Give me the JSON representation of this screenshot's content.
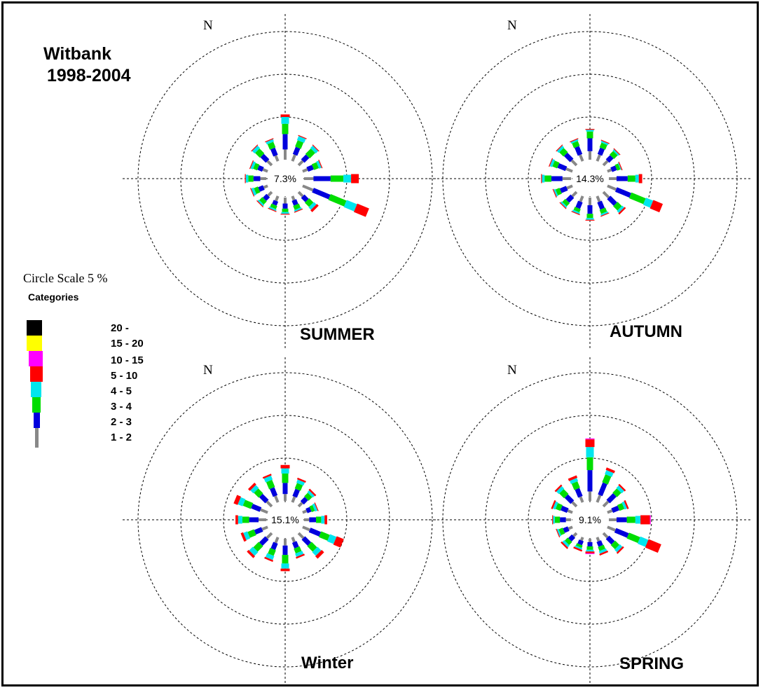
{
  "header": {
    "station": "Witbank",
    "period": "1998-2004"
  },
  "legend": {
    "circle_scale": "Circle Scale 5 %",
    "categories_label": "Categories",
    "categories": [
      {
        "label": "20 -",
        "color": "#000000"
      },
      {
        "label": "15 - 20",
        "color": "#ffff00"
      },
      {
        "label": "10 - 15",
        "color": "#ff00ff"
      },
      {
        "label": "5 - 10",
        "color": "#ff0000"
      },
      {
        "label": "4 - 5",
        "color": "#00e5ee"
      },
      {
        "label": "3 - 4",
        "color": "#00dd00"
      },
      {
        "label": "2 - 3",
        "color": "#0000dd"
      },
      {
        "label": "1 - 2",
        "color": "#888888"
      }
    ]
  },
  "north_label": "N",
  "chart_data": [
    {
      "type": "wind-rose",
      "title": "SUMMER",
      "calm": "7.3%",
      "circle_scale_percent": 5,
      "speed_classes": [
        "1 - 2",
        "2 - 3",
        "3 - 4",
        "4 - 5",
        "5 - 10",
        "10 - 15",
        "15 - 20",
        "20 -"
      ],
      "directions": [
        "N",
        "NNE",
        "NE",
        "ENE",
        "E",
        "ESE",
        "SE",
        "SSE",
        "S",
        "SSW",
        "SW",
        "WSW",
        "W",
        "WNW",
        "NW",
        "NNW"
      ],
      "values": [
        [
          1.2,
          1.8,
          1.2,
          0.8,
          0.3,
          0,
          0,
          0
        ],
        [
          0.8,
          0.9,
          0.8,
          0.5,
          0.1,
          0,
          0,
          0
        ],
        [
          0.7,
          0.8,
          0.9,
          0.4,
          0.1,
          0,
          0,
          0
        ],
        [
          0.6,
          0.7,
          0.6,
          0.3,
          0.1,
          0,
          0,
          0
        ],
        [
          1.1,
          2.0,
          1.5,
          0.9,
          0.9,
          0,
          0,
          0
        ],
        [
          1.3,
          2.1,
          2.0,
          1.3,
          1.5,
          0,
          0,
          0
        ],
        [
          0.7,
          0.7,
          0.7,
          0.4,
          0.3,
          0,
          0,
          0
        ],
        [
          0.5,
          0.6,
          0.5,
          0.2,
          0.1,
          0,
          0,
          0
        ],
        [
          0.7,
          0.6,
          0.4,
          0.2,
          0.1,
          0,
          0,
          0
        ],
        [
          0.6,
          0.5,
          0.4,
          0.2,
          0.1,
          0,
          0,
          0
        ],
        [
          0.6,
          0.6,
          0.5,
          0.2,
          0.1,
          0,
          0,
          0
        ],
        [
          0.5,
          0.6,
          0.5,
          0.3,
          0.1,
          0,
          0,
          0
        ],
        [
          0.7,
          0.8,
          0.6,
          0.3,
          0.1,
          0,
          0,
          0
        ],
        [
          0.6,
          0.6,
          0.5,
          0.3,
          0.1,
          0,
          0,
          0
        ],
        [
          0.7,
          0.9,
          0.8,
          0.4,
          0.1,
          0,
          0,
          0
        ],
        [
          0.7,
          0.9,
          0.7,
          0.3,
          0.1,
          0,
          0,
          0
        ]
      ]
    },
    {
      "type": "wind-rose",
      "title": "AUTUMN",
      "calm": "14.3%",
      "circle_scale_percent": 5,
      "speed_classes": [
        "1 - 2",
        "2 - 3",
        "3 - 4",
        "4 - 5",
        "5 - 10",
        "10 - 15",
        "15 - 20",
        "20 -"
      ],
      "directions": [
        "N",
        "NNE",
        "NE",
        "ENE",
        "E",
        "ESE",
        "SE",
        "SSE",
        "S",
        "SSW",
        "SW",
        "WSW",
        "W",
        "WNW",
        "NW",
        "NNW"
      ],
      "values": [
        [
          1.0,
          1.5,
          0.8,
          0.2,
          0.1,
          0,
          0,
          0
        ],
        [
          0.8,
          0.8,
          0.6,
          0.2,
          0.1,
          0,
          0,
          0
        ],
        [
          0.7,
          0.7,
          0.6,
          0.2,
          0.1,
          0,
          0,
          0
        ],
        [
          0.5,
          0.6,
          0.4,
          0.1,
          0.1,
          0,
          0,
          0
        ],
        [
          0.9,
          1.3,
          0.9,
          0.4,
          0.4,
          0,
          0,
          0
        ],
        [
          1.1,
          1.8,
          1.8,
          0.9,
          1.2,
          0,
          0,
          0
        ],
        [
          0.9,
          1.1,
          0.7,
          0.3,
          0.2,
          0,
          0,
          0
        ],
        [
          0.7,
          0.9,
          0.5,
          0.2,
          0.1,
          0,
          0,
          0
        ],
        [
          0.9,
          1.0,
          0.5,
          0.2,
          0.1,
          0,
          0,
          0
        ],
        [
          0.7,
          0.8,
          0.4,
          0.2,
          0.1,
          0,
          0,
          0
        ],
        [
          0.7,
          0.8,
          0.5,
          0.2,
          0.1,
          0,
          0,
          0
        ],
        [
          0.7,
          0.8,
          0.5,
          0.2,
          0.1,
          0,
          0,
          0
        ],
        [
          1.0,
          1.3,
          0.8,
          0.3,
          0.1,
          0,
          0,
          0
        ],
        [
          0.8,
          1.0,
          0.6,
          0.3,
          0.1,
          0,
          0,
          0
        ],
        [
          0.8,
          1.0,
          0.7,
          0.3,
          0.1,
          0,
          0,
          0
        ],
        [
          0.8,
          1.0,
          0.6,
          0.2,
          0.1,
          0,
          0,
          0
        ]
      ]
    },
    {
      "type": "wind-rose",
      "title": "Winter",
      "calm": "15.1%",
      "circle_scale_percent": 5,
      "speed_classes": [
        "1 - 2",
        "2 - 3",
        "3 - 4",
        "4 - 5",
        "5 - 10",
        "10 - 15",
        "15 - 20",
        "20 -"
      ],
      "directions": [
        "N",
        "NNE",
        "NE",
        "ENE",
        "E",
        "ESE",
        "SE",
        "SSE",
        "S",
        "SSW",
        "SW",
        "WSW",
        "W",
        "WNW",
        "NW",
        "NNW"
      ],
      "values": [
        [
          0.8,
          1.3,
          1.1,
          0.6,
          0.4,
          0,
          0,
          0
        ],
        [
          0.7,
          0.9,
          0.7,
          0.4,
          0.2,
          0,
          0,
          0
        ],
        [
          0.6,
          0.7,
          0.6,
          0.3,
          0.2,
          0,
          0,
          0
        ],
        [
          0.5,
          0.5,
          0.4,
          0.3,
          0.1,
          0,
          0,
          0
        ],
        [
          0.6,
          0.8,
          0.6,
          0.4,
          0.3,
          0,
          0,
          0
        ],
        [
          0.9,
          1.3,
          1.1,
          0.8,
          0.9,
          0,
          0,
          0
        ],
        [
          0.8,
          1.0,
          0.9,
          0.6,
          0.4,
          0,
          0,
          0
        ],
        [
          0.6,
          0.7,
          0.6,
          0.4,
          0.2,
          0,
          0,
          0
        ],
        [
          0.8,
          1.1,
          1.0,
          0.6,
          0.3,
          0,
          0,
          0
        ],
        [
          0.7,
          0.8,
          0.7,
          0.5,
          0.2,
          0,
          0,
          0
        ],
        [
          0.8,
          1.0,
          0.9,
          0.6,
          0.3,
          0,
          0,
          0
        ],
        [
          0.7,
          0.9,
          0.8,
          0.5,
          0.3,
          0,
          0,
          0
        ],
        [
          0.9,
          1.1,
          0.8,
          0.5,
          0.3,
          0,
          0,
          0
        ],
        [
          0.9,
          1.1,
          1.0,
          0.6,
          0.5,
          0,
          0,
          0
        ],
        [
          0.8,
          1.0,
          0.8,
          0.5,
          0.3,
          0,
          0,
          0
        ],
        [
          0.8,
          1.0,
          0.9,
          0.5,
          0.2,
          0,
          0,
          0
        ]
      ]
    },
    {
      "type": "wind-rose",
      "title": "SPRING",
      "calm": "9.1%",
      "circle_scale_percent": 5,
      "speed_classes": [
        "1 - 2",
        "2 - 3",
        "3 - 4",
        "4 - 5",
        "5 - 10",
        "10 - 15",
        "15 - 20",
        "20 -"
      ],
      "directions": [
        "N",
        "NNE",
        "NE",
        "ENE",
        "E",
        "ESE",
        "SE",
        "SSE",
        "S",
        "SSW",
        "SW",
        "WSW",
        "W",
        "WNW",
        "NW",
        "NNW"
      ],
      "values": [
        [
          1.1,
          2.5,
          1.5,
          1.2,
          0.9,
          0.1,
          0,
          0
        ],
        [
          0.9,
          1.5,
          1.0,
          0.5,
          0.3,
          0,
          0,
          0
        ],
        [
          0.8,
          1.1,
          0.7,
          0.4,
          0.2,
          0,
          0,
          0
        ],
        [
          0.6,
          0.8,
          0.6,
          0.3,
          0.2,
          0,
          0,
          0
        ],
        [
          0.9,
          1.2,
          1.0,
          0.6,
          1.1,
          0.1,
          0,
          0
        ],
        [
          1.0,
          1.6,
          1.4,
          1.0,
          1.6,
          0,
          0,
          0
        ],
        [
          0.7,
          0.9,
          0.7,
          0.4,
          0.2,
          0,
          0,
          0
        ],
        [
          0.5,
          0.6,
          0.5,
          0.3,
          0.2,
          0,
          0,
          0
        ],
        [
          0.4,
          0.5,
          0.4,
          0.2,
          0.2,
          0.1,
          0,
          0
        ],
        [
          0.4,
          0.5,
          0.3,
          0.2,
          0.2,
          0,
          0,
          0
        ],
        [
          0.5,
          0.6,
          0.5,
          0.3,
          0.2,
          0,
          0,
          0
        ],
        [
          0.5,
          0.6,
          0.5,
          0.2,
          0.1,
          0,
          0,
          0
        ],
        [
          0.6,
          0.7,
          0.6,
          0.2,
          0.1,
          0,
          0,
          0
        ],
        [
          0.6,
          0.8,
          0.6,
          0.3,
          0.2,
          0,
          0,
          0
        ],
        [
          0.7,
          1.0,
          0.8,
          0.4,
          0.2,
          0,
          0,
          0
        ],
        [
          0.7,
          1.0,
          0.8,
          0.4,
          0.3,
          0,
          0,
          0
        ]
      ]
    }
  ]
}
